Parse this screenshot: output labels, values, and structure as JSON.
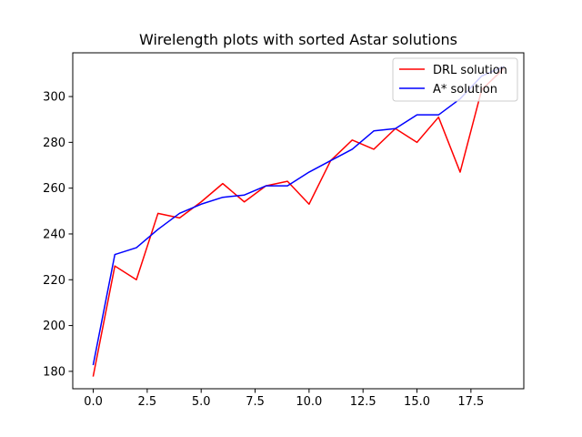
{
  "chart_data": {
    "type": "line",
    "title": "Wirelength plots with sorted Astar solutions",
    "xlabel": "",
    "ylabel": "",
    "xlim": [
      -0.95,
      19.95
    ],
    "ylim": [
      172.4,
      319.1
    ],
    "xticks": [
      0.0,
      2.5,
      5.0,
      7.5,
      10.0,
      12.5,
      15.0,
      17.5
    ],
    "xtick_labels": [
      "0.0",
      "2.5",
      "5.0",
      "7.5",
      "10.0",
      "12.5",
      "15.0",
      "17.5"
    ],
    "yticks": [
      180,
      200,
      220,
      240,
      260,
      280,
      300
    ],
    "ytick_labels": [
      "180",
      "200",
      "220",
      "240",
      "260",
      "280",
      "300"
    ],
    "grid": false,
    "legend_position": "top-right",
    "x": [
      0,
      1,
      2,
      3,
      4,
      5,
      6,
      7,
      8,
      9,
      10,
      11,
      12,
      13,
      14,
      15,
      16,
      17,
      18,
      19
    ],
    "series": [
      {
        "name": "DRL solution",
        "color": "#ff0000",
        "values": [
          178,
          226,
          220,
          249,
          247,
          254,
          262,
          254,
          261,
          263,
          253,
          272,
          281,
          277,
          286,
          280,
          291,
          267,
          303,
          312
        ]
      },
      {
        "name": "A* solution",
        "color": "#0000ff",
        "values": [
          183,
          231,
          234,
          242,
          249,
          253,
          256,
          257,
          261,
          261,
          267,
          272,
          277,
          285,
          286,
          292,
          292,
          299,
          309,
          313
        ]
      }
    ]
  }
}
